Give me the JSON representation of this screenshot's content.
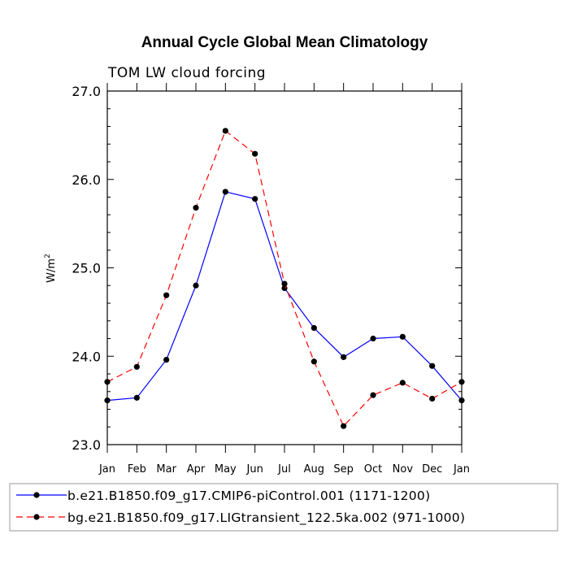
{
  "chart_data": {
    "type": "line",
    "title": "Annual Cycle Global Mean Climatology",
    "subtitle": "TOM LW cloud forcing",
    "ylabel": "W/m",
    "ylabel_sup": "2",
    "ylim": [
      23.0,
      27.0
    ],
    "yticks": [
      23.0,
      24.0,
      25.0,
      26.0,
      27.0
    ],
    "ytick_labels": [
      "23.0",
      "24.0",
      "25.0",
      "26.0",
      "27.0"
    ],
    "categories": [
      "Jan",
      "Feb",
      "Mar",
      "Apr",
      "May",
      "Jun",
      "Jul",
      "Aug",
      "Sep",
      "Oct",
      "Nov",
      "Dec",
      "Jan"
    ],
    "series": [
      {
        "name": "b.e21.B1850.f09_g17.CMIP6-piControl.001 (1171-1200)",
        "color": "#0000ff",
        "dash": "solid",
        "values": [
          23.5,
          23.53,
          23.96,
          24.8,
          25.86,
          25.78,
          24.77,
          24.32,
          23.99,
          24.2,
          24.22,
          23.89,
          23.5
        ]
      },
      {
        "name": "bg.e21.B1850.f09_g17.LIGtransient_122.5ka.002 (971-1000)",
        "color": "#ff0000",
        "dash": "dashed",
        "values": [
          23.71,
          23.88,
          24.69,
          25.68,
          26.55,
          26.29,
          24.82,
          23.94,
          23.21,
          23.56,
          23.7,
          23.52,
          23.71
        ]
      }
    ],
    "legend_position": "bottom",
    "grid": false
  }
}
